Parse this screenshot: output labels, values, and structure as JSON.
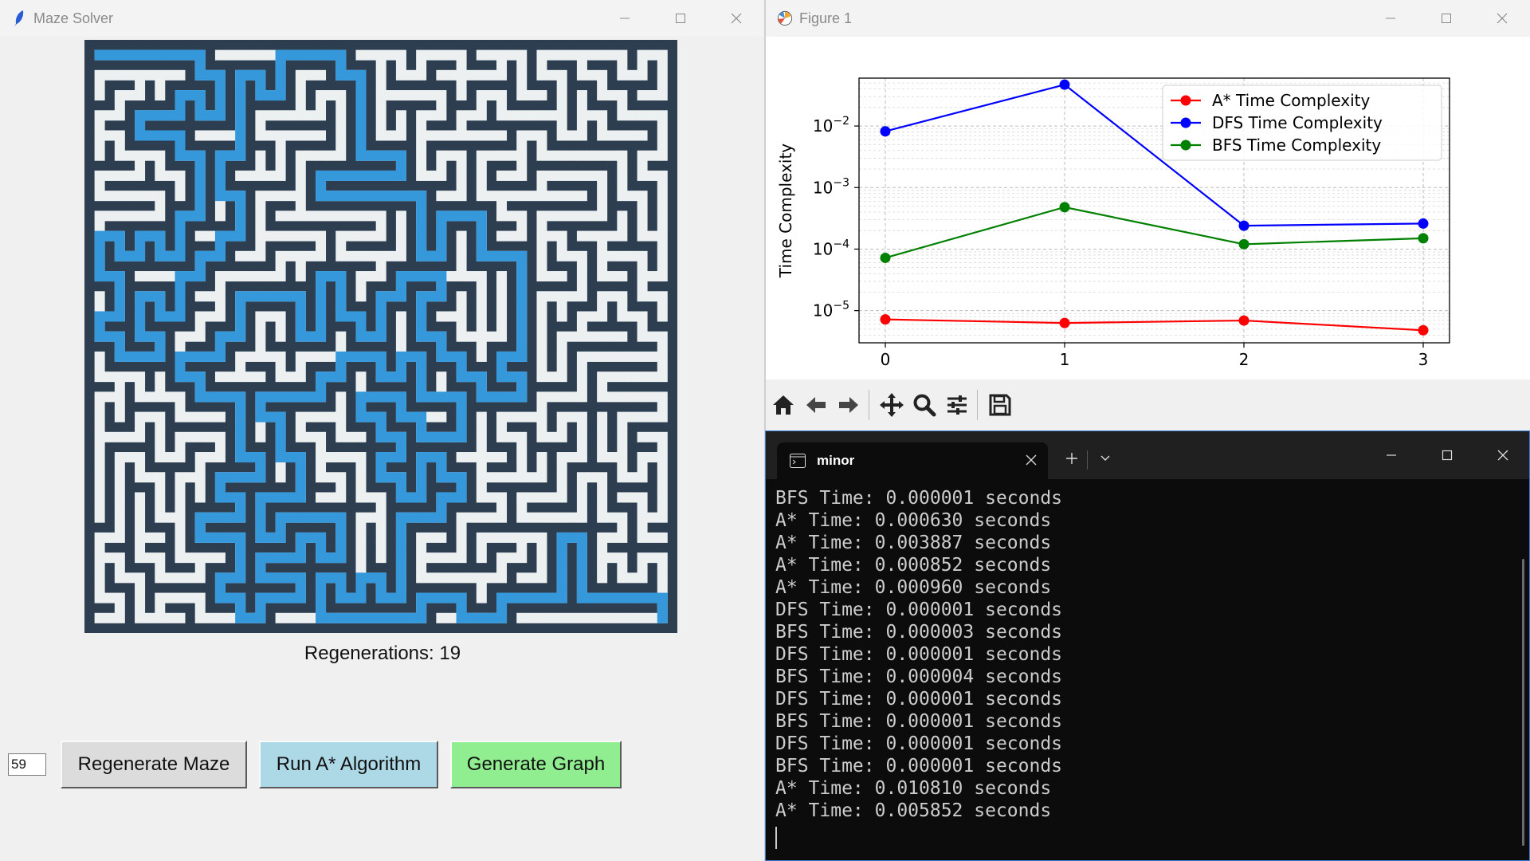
{
  "maze_window": {
    "title": "Maze Solver",
    "regenerations_label": "Regenerations: 19",
    "size_input_value": "59",
    "buttons": {
      "regenerate": "Regenerate Maze",
      "run_astar": "Run A* Algorithm",
      "generate_graph": "Generate Graph"
    },
    "colors": {
      "wall": "#2c3e50",
      "path": "#ecf0f1",
      "solution": "#3498db"
    }
  },
  "figure_window": {
    "title": "Figure 1",
    "toolbar_icons": [
      "home-icon",
      "back-icon",
      "forward-icon",
      "pan-icon",
      "zoom-icon",
      "configure-icon",
      "save-icon"
    ]
  },
  "chart_data": {
    "type": "line",
    "title": "",
    "xlabel": "",
    "ylabel": "Time Complexity",
    "yscale": "log",
    "x": [
      0,
      1,
      2,
      3
    ],
    "ylim": [
      3e-06,
      0.06
    ],
    "ytick_labels": [
      "10−5",
      "10−4",
      "10−3",
      "10−2"
    ],
    "xtick_labels": [
      "0",
      "1",
      "2",
      "3"
    ],
    "grid": true,
    "legend": "top-right",
    "series": [
      {
        "name": "A* Time Complexity",
        "color": "#ff0000",
        "values": [
          7.2e-06,
          6.3e-06,
          6.9e-06,
          4.8e-06
        ]
      },
      {
        "name": "DFS Time Complexity",
        "color": "#0000ff",
        "values": [
          0.0082,
          0.047,
          0.00024,
          0.00026
        ]
      },
      {
        "name": "BFS Time Complexity",
        "color": "#008000",
        "values": [
          7.2e-05,
          0.00048,
          0.00012,
          0.00015
        ]
      }
    ]
  },
  "terminal": {
    "tab_title": "minor",
    "lines": [
      "BFS Time: 0.000001 seconds",
      "A* Time: 0.000630 seconds",
      "A* Time: 0.003887 seconds",
      "A* Time: 0.000852 seconds",
      "A* Time: 0.000960 seconds",
      "DFS Time: 0.000001 seconds",
      "BFS Time: 0.000003 seconds",
      "DFS Time: 0.000001 seconds",
      "BFS Time: 0.000004 seconds",
      "DFS Time: 0.000001 seconds",
      "BFS Time: 0.000001 seconds",
      "DFS Time: 0.000001 seconds",
      "BFS Time: 0.000001 seconds",
      "A* Time: 0.010810 seconds",
      "A* Time: 0.005852 seconds"
    ]
  }
}
